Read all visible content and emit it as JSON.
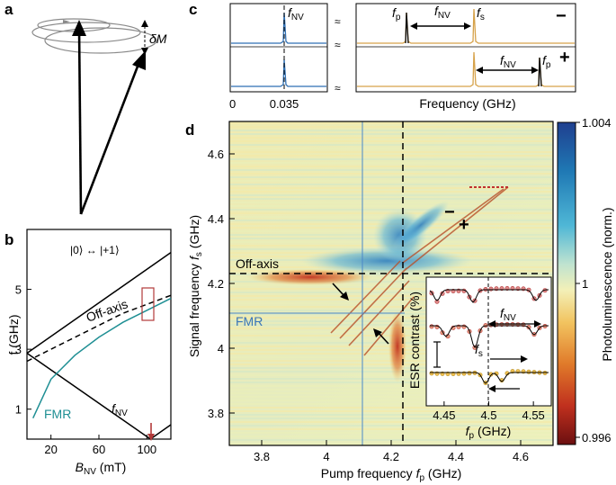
{
  "panels": {
    "a": {
      "letter": "a",
      "delta_label": "δM"
    },
    "b": {
      "letter": "b",
      "chart_data": {
        "type": "line",
        "xlabel": "B",
        "xlabel_sub": "NV",
        "xlabel_unit": " (mT)",
        "ylabel": "f (GHz)",
        "xlim": [
          0,
          120
        ],
        "ylim": [
          0,
          7
        ],
        "xticks": [
          "20",
          "60",
          "100"
        ],
        "yticks": [
          "1",
          "3",
          "5"
        ],
        "annotations": {
          "transition": "|0⟩ ↔ |+1⟩",
          "off_axis": "Off-axis",
          "fmr": "FMR",
          "fnv": "f",
          "fnv_sub": "NV"
        },
        "series": [
          {
            "id": "upper",
            "x": [
              0,
              120
            ],
            "y": [
              2.87,
              6.23
            ],
            "color": "#000000"
          },
          {
            "id": "lower",
            "x": [
              0,
              103,
              120
            ],
            "y": [
              2.87,
              0,
              0.48
            ],
            "color": "#000000"
          },
          {
            "id": "off-axis",
            "x": [
              0,
              20,
              50,
              80,
              120
            ],
            "y": [
              2.6,
              3.0,
              3.6,
              4.2,
              4.8
            ],
            "color": "#000000"
          },
          {
            "id": "fmr",
            "x": [
              5,
              20,
              40,
              60,
              80,
              100,
              120
            ],
            "y": [
              0.7,
              2.0,
              2.8,
              3.4,
              3.9,
              4.3,
              4.7
            ],
            "color": "#1f8f94"
          }
        ]
      }
    },
    "c": {
      "letter": "c",
      "zero": "0",
      "tick_035": "0.035",
      "xlabel": "Frequency (GHz)",
      "f_label": "f",
      "nv_sub": "NV",
      "p_sub": "p",
      "s_sub": "s",
      "minus": "−",
      "plus": "+",
      "break_mark": "≈"
    },
    "d": {
      "letter": "d",
      "chart_data": {
        "type": "heatmap",
        "xlabel": "Pump frequency ",
        "xlabel_f": "f",
        "xlabel_sub": "p",
        "xlabel_unit": " (GHz)",
        "ylabel": "Signal frequency ",
        "ylabel_f": "f",
        "ylabel_sub": "s",
        "ylabel_unit": " (GHz)",
        "xlim": [
          3.7,
          4.7
        ],
        "ylim": [
          3.7,
          4.7
        ],
        "xticks": [
          "3.8",
          "4",
          "4.2",
          "4.4",
          "4.6"
        ],
        "yticks": [
          "3.8",
          "4",
          "4.2",
          "4.4",
          "4.6"
        ],
        "off_axis_label": "Off-axis",
        "fmr_label": "FMR",
        "minus": "−",
        "plus": "+",
        "colorbar": {
          "label": "Photoluminescence (norm.)",
          "ticks": [
            "1.004",
            "1",
            "0.996"
          ],
          "range": [
            0.996,
            1.004
          ]
        },
        "inset": {
          "ylabel": "ESR contrast (%)",
          "xlabel_f": "f",
          "xlabel_sub": "p",
          "xlabel_unit": " (GHz)",
          "xticks": [
            "4.45",
            "4.5",
            "4.55"
          ],
          "f_label": "f",
          "nv_sub": "NV",
          "s_sub": "s"
        }
      }
    }
  }
}
